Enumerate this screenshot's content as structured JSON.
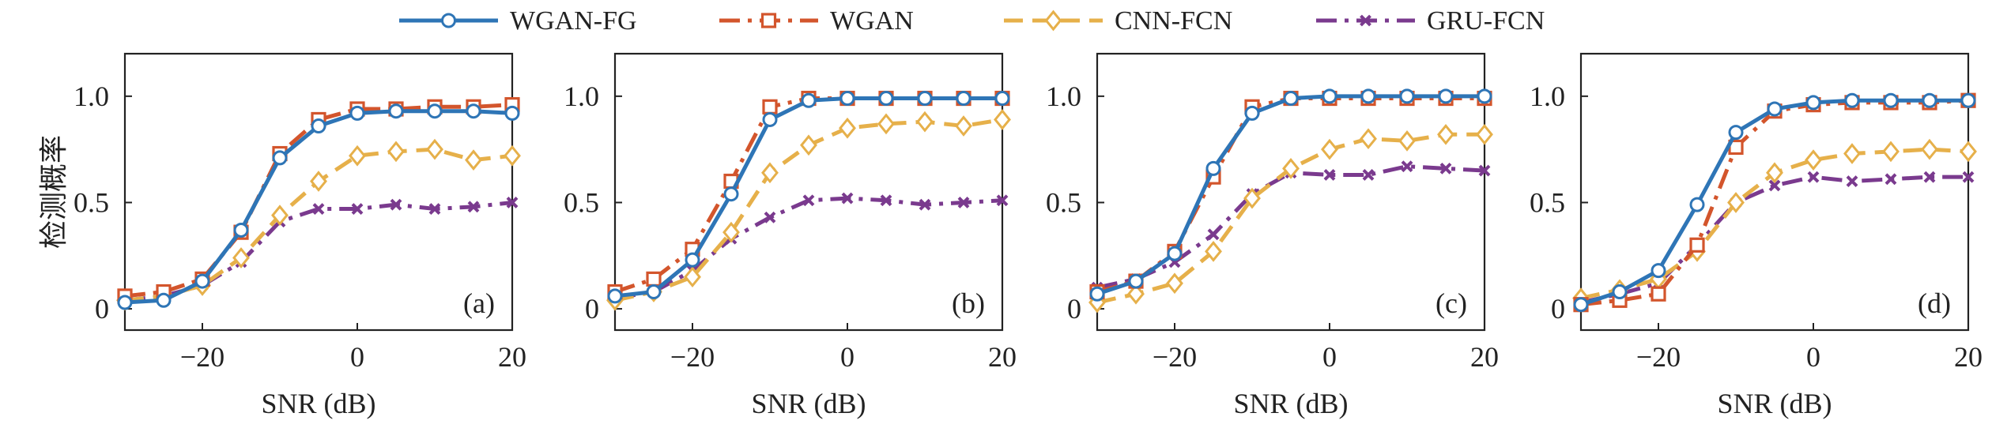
{
  "legend": [
    {
      "name": "WGAN-FG",
      "color": "#2e75b6",
      "dash": "solid",
      "marker": "circle"
    },
    {
      "name": "WGAN",
      "color": "#d3552c",
      "dash": "dashdot",
      "marker": "square"
    },
    {
      "name": "CNN-FCN",
      "color": "#e6b04a",
      "dash": "dashed",
      "marker": "diamond"
    },
    {
      "name": "GRU-FCN",
      "color": "#7a3a8e",
      "dash": "dashdot",
      "marker": "x"
    }
  ],
  "chart_data": [
    {
      "type": "line",
      "panel_label": "(a)",
      "xlabel": "SNR (dB)",
      "ylabel": "检测概率",
      "xlim": [
        -30,
        20
      ],
      "ylim": [
        -0.1,
        1.2
      ],
      "xticks": [
        "−20",
        "0",
        "20"
      ],
      "yticks": [
        "0",
        "0.5",
        "1.0"
      ],
      "x": [
        -30,
        -25,
        -20,
        -15,
        -10,
        -5,
        0,
        5,
        10,
        15,
        20
      ],
      "series": [
        {
          "name": "WGAN-FG",
          "values": [
            0.03,
            0.04,
            0.13,
            0.37,
            0.71,
            0.86,
            0.92,
            0.93,
            0.93,
            0.93,
            0.92
          ]
        },
        {
          "name": "WGAN",
          "values": [
            0.06,
            0.08,
            0.14,
            0.36,
            0.73,
            0.89,
            0.94,
            0.94,
            0.95,
            0.95,
            0.96
          ]
        },
        {
          "name": "CNN-FCN",
          "values": [
            0.04,
            0.06,
            0.11,
            0.24,
            0.44,
            0.6,
            0.72,
            0.74,
            0.75,
            0.7,
            0.72
          ]
        },
        {
          "name": "GRU-FCN",
          "values": [
            0.04,
            0.06,
            0.11,
            0.22,
            0.41,
            0.47,
            0.47,
            0.49,
            0.47,
            0.48,
            0.5
          ]
        }
      ]
    },
    {
      "type": "line",
      "panel_label": "(b)",
      "xlabel": "SNR (dB)",
      "ylabel": "",
      "xlim": [
        -30,
        20
      ],
      "ylim": [
        -0.1,
        1.2
      ],
      "xticks": [
        "−20",
        "0",
        "20"
      ],
      "yticks": [
        "0",
        "0.5",
        "1.0"
      ],
      "x": [
        -30,
        -25,
        -20,
        -15,
        -10,
        -5,
        0,
        5,
        10,
        15,
        20
      ],
      "series": [
        {
          "name": "WGAN-FG",
          "values": [
            0.06,
            0.08,
            0.23,
            0.54,
            0.89,
            0.98,
            0.99,
            0.99,
            0.99,
            0.99,
            0.99
          ]
        },
        {
          "name": "WGAN",
          "values": [
            0.08,
            0.14,
            0.28,
            0.6,
            0.95,
            0.99,
            0.99,
            0.99,
            0.99,
            0.99,
            0.99
          ]
        },
        {
          "name": "CNN-FCN",
          "values": [
            0.04,
            0.08,
            0.15,
            0.36,
            0.64,
            0.77,
            0.85,
            0.87,
            0.88,
            0.86,
            0.89
          ]
        },
        {
          "name": "GRU-FCN",
          "values": [
            0.05,
            0.08,
            0.18,
            0.33,
            0.43,
            0.51,
            0.52,
            0.51,
            0.49,
            0.5,
            0.51
          ]
        }
      ]
    },
    {
      "type": "line",
      "panel_label": "(c)",
      "xlabel": "SNR (dB)",
      "ylabel": "",
      "xlim": [
        -30,
        20
      ],
      "ylim": [
        -0.1,
        1.2
      ],
      "xticks": [
        "−20",
        "0",
        "20"
      ],
      "yticks": [
        "0",
        "0.5",
        "1.0"
      ],
      "x": [
        -30,
        -25,
        -20,
        -15,
        -10,
        -5,
        0,
        5,
        10,
        15,
        20
      ],
      "series": [
        {
          "name": "WGAN-FG",
          "values": [
            0.07,
            0.13,
            0.26,
            0.66,
            0.92,
            0.99,
            1.0,
            1.0,
            1.0,
            1.0,
            1.0
          ]
        },
        {
          "name": "WGAN",
          "values": [
            0.08,
            0.13,
            0.27,
            0.62,
            0.95,
            0.99,
            0.99,
            0.99,
            0.99,
            0.99,
            0.99
          ]
        },
        {
          "name": "CNN-FCN",
          "values": [
            0.03,
            0.07,
            0.12,
            0.27,
            0.52,
            0.66,
            0.75,
            0.8,
            0.79,
            0.82,
            0.82
          ]
        },
        {
          "name": "GRU-FCN",
          "values": [
            0.1,
            0.14,
            0.22,
            0.35,
            0.54,
            0.64,
            0.63,
            0.63,
            0.67,
            0.66,
            0.65
          ]
        }
      ]
    },
    {
      "type": "line",
      "panel_label": "(d)",
      "xlabel": "SNR (dB)",
      "ylabel": "",
      "xlim": [
        -30,
        20
      ],
      "ylim": [
        -0.1,
        1.2
      ],
      "xticks": [
        "−20",
        "0",
        "20"
      ],
      "yticks": [
        "0",
        "0.5",
        "1.0"
      ],
      "x": [
        -30,
        -25,
        -20,
        -15,
        -10,
        -5,
        0,
        5,
        10,
        15,
        20
      ],
      "series": [
        {
          "name": "WGAN-FG",
          "values": [
            0.02,
            0.08,
            0.18,
            0.49,
            0.83,
            0.94,
            0.97,
            0.98,
            0.98,
            0.98,
            0.98
          ]
        },
        {
          "name": "WGAN",
          "values": [
            0.02,
            0.04,
            0.07,
            0.3,
            0.76,
            0.93,
            0.96,
            0.97,
            0.97,
            0.97,
            0.98
          ]
        },
        {
          "name": "CNN-FCN",
          "values": [
            0.05,
            0.09,
            0.14,
            0.27,
            0.5,
            0.64,
            0.7,
            0.73,
            0.74,
            0.75,
            0.74
          ]
        },
        {
          "name": "GRU-FCN",
          "values": [
            0.03,
            0.07,
            0.12,
            0.3,
            0.5,
            0.58,
            0.62,
            0.6,
            0.61,
            0.62,
            0.62
          ]
        }
      ]
    }
  ]
}
